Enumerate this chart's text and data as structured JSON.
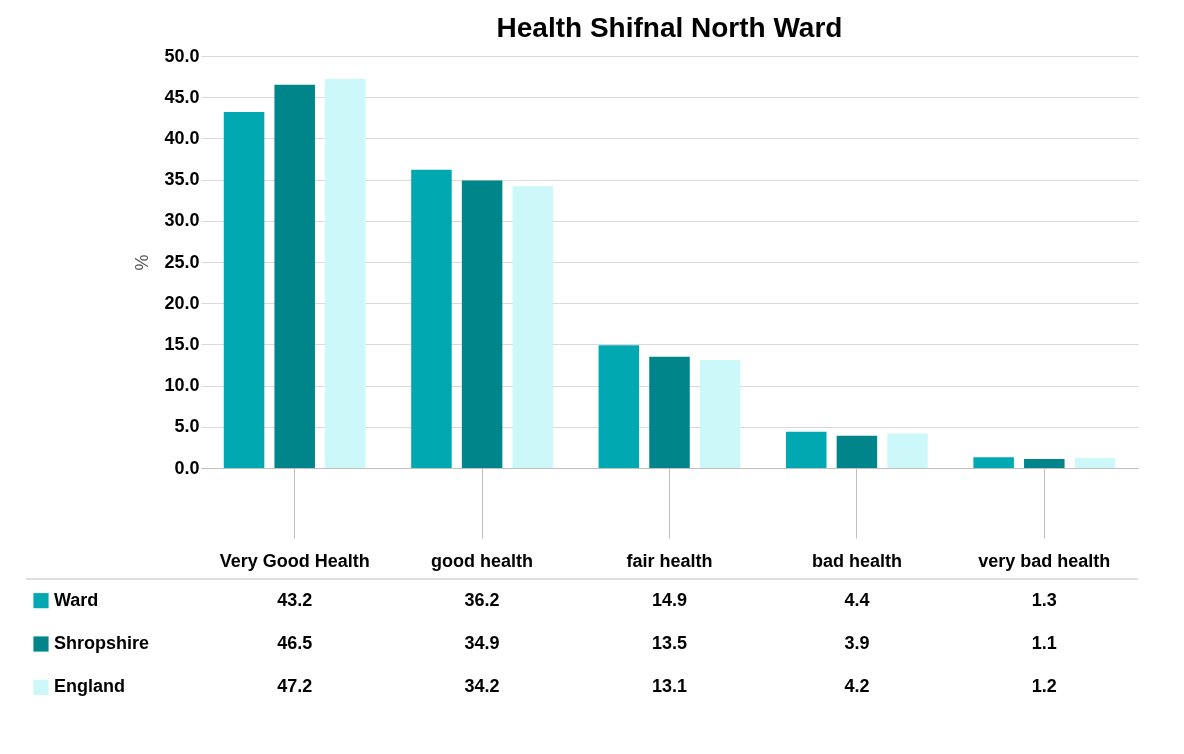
{
  "chart_data": {
    "type": "bar",
    "title": "Health Shifnal North Ward",
    "ylabel": "%",
    "categories": [
      "Very Good Health",
      "good health",
      "fair health",
      "bad health",
      "very bad health"
    ],
    "series": [
      {
        "name": "Ward",
        "color": "#00a9b1",
        "values": [
          43.2,
          36.2,
          14.9,
          4.4,
          1.3
        ]
      },
      {
        "name": "Shropshire",
        "color": "#00868a",
        "values": [
          46.5,
          34.9,
          13.5,
          3.9,
          1.1
        ]
      },
      {
        "name": "England",
        "color": "#ccf8fa",
        "values": [
          47.2,
          34.2,
          13.1,
          4.2,
          1.2
        ]
      }
    ],
    "ylim": [
      0,
      50
    ],
    "yticks": [
      {
        "value": 0,
        "label": "0.0"
      },
      {
        "value": 5,
        "label": "5.0"
      },
      {
        "value": 10,
        "label": "10.0"
      },
      {
        "value": 15,
        "label": "15.0"
      },
      {
        "value": 20,
        "label": "20.0"
      },
      {
        "value": 25,
        "label": "25.0"
      },
      {
        "value": 30,
        "label": "30.0"
      },
      {
        "value": 35,
        "label": "35.0"
      },
      {
        "value": 40,
        "label": "40.0"
      },
      {
        "value": 45,
        "label": "45.0"
      },
      {
        "value": 50,
        "label": "50.0"
      }
    ],
    "grid": "y",
    "legend": "bottom",
    "data_labels": true
  }
}
